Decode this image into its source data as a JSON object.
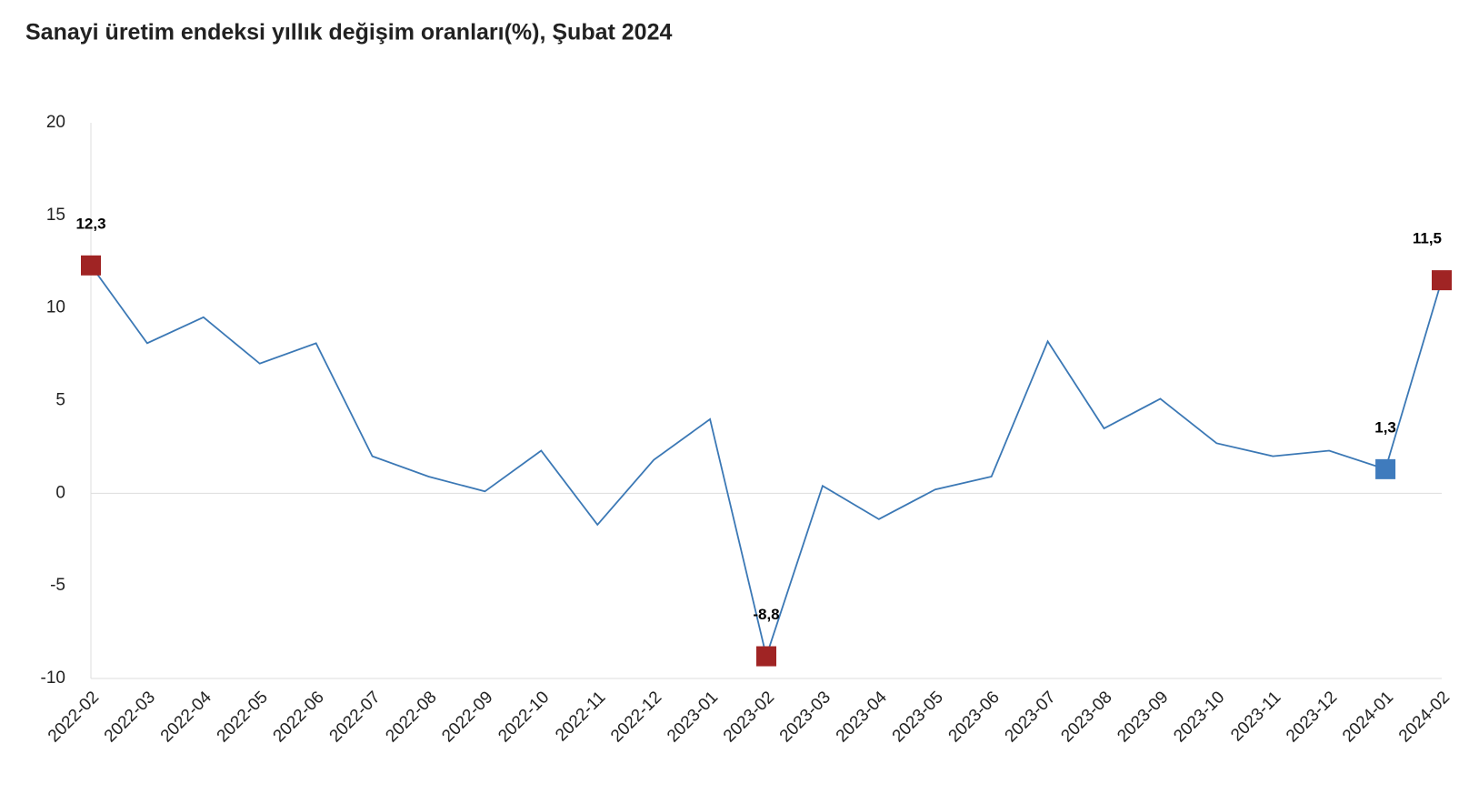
{
  "chart_data": {
    "type": "line",
    "title": "Sanayi üretim endeksi yıllık değişim oranları(%), Şubat 2024",
    "categories": [
      "2022-02",
      "2022-03",
      "2022-04",
      "2022-05",
      "2022-06",
      "2022-07",
      "2022-08",
      "2022-09",
      "2022-10",
      "2022-11",
      "2022-12",
      "2023-01",
      "2023-02",
      "2023-03",
      "2023-04",
      "2023-05",
      "2023-06",
      "2023-07",
      "2023-08",
      "2023-09",
      "2023-10",
      "2023-11",
      "2023-12",
      "2024-01",
      "2024-02"
    ],
    "values": [
      12.3,
      8.1,
      9.5,
      7.0,
      8.1,
      2.0,
      0.9,
      0.1,
      2.3,
      -1.7,
      1.8,
      4.0,
      -8.8,
      0.4,
      -1.4,
      0.2,
      0.9,
      8.2,
      3.5,
      5.1,
      2.7,
      2.0,
      2.3,
      1.3,
      11.5
    ],
    "value_labels": [
      "12,3",
      null,
      null,
      null,
      null,
      null,
      null,
      null,
      null,
      null,
      null,
      null,
      "-8,8",
      null,
      null,
      null,
      null,
      null,
      null,
      null,
      null,
      null,
      null,
      "1,3",
      "11,5"
    ],
    "color": "#3b78b5",
    "marker_colors": [
      "#a02424",
      null,
      null,
      null,
      null,
      null,
      null,
      null,
      null,
      null,
      null,
      null,
      "#a02424",
      null,
      null,
      null,
      null,
      null,
      null,
      null,
      null,
      null,
      null,
      "#3f7bbd",
      "#a02424"
    ],
    "ylim": [
      -10,
      20
    ],
    "yticks": [
      -10,
      -5,
      0,
      5,
      10,
      15,
      20
    ],
    "grid": false
  }
}
